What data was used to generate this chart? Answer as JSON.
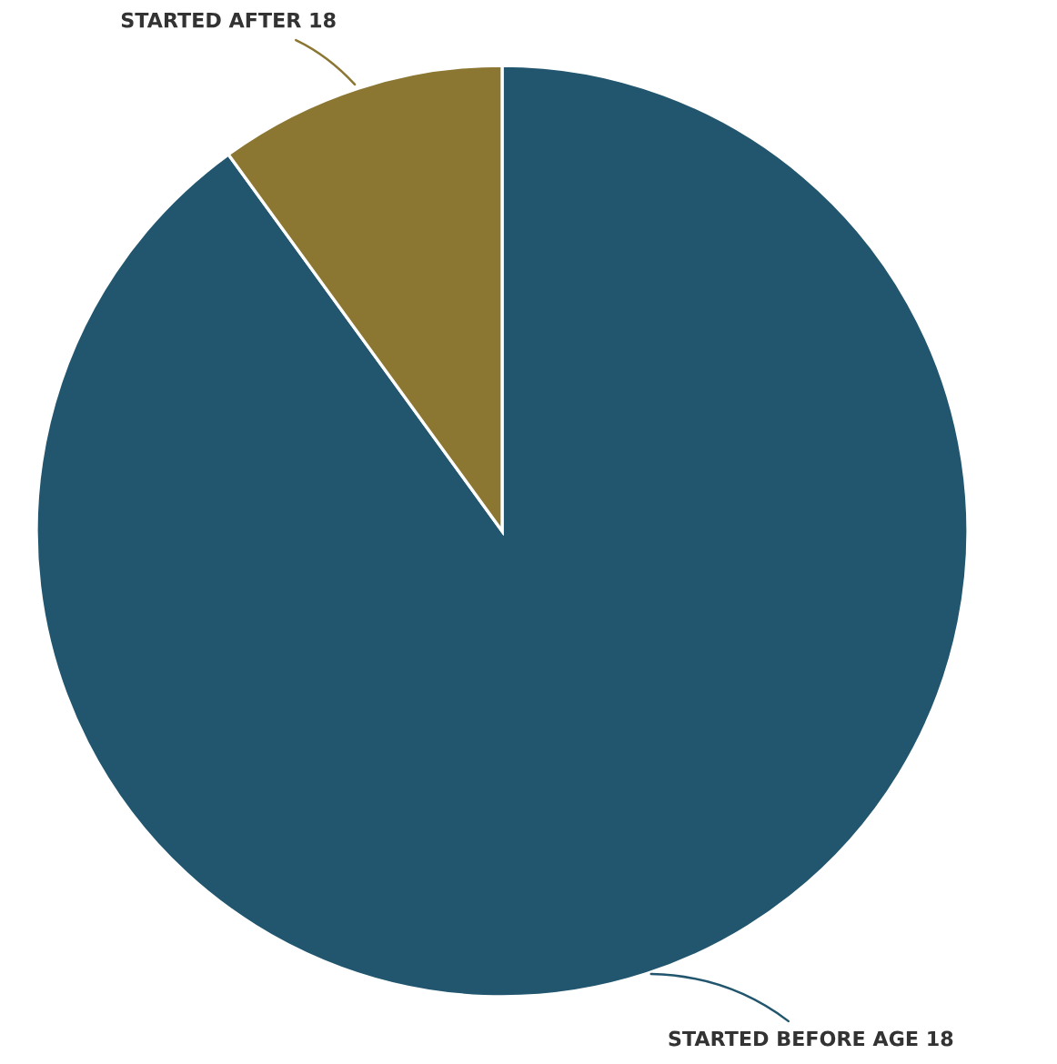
{
  "chart_data": {
    "type": "pie",
    "categories": [
      "STARTED BEFORE AGE 18",
      "STARTED AFTER 18"
    ],
    "values": [
      90,
      10
    ],
    "colors": [
      "#22566f",
      "#8b7632"
    ]
  }
}
